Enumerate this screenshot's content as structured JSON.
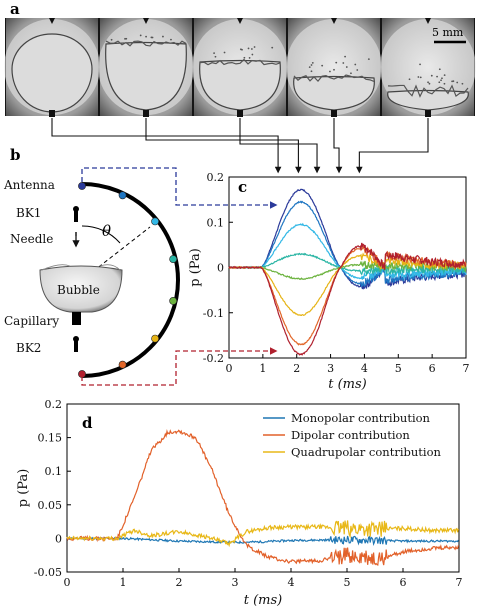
{
  "panel_labels": {
    "a": "a",
    "b": "b",
    "c": "c",
    "d": "d"
  },
  "scale_bar": "5 mm",
  "schematic": {
    "antenna": "Antenna",
    "bk1": "BK1",
    "needle": "Needle",
    "theta": "θ",
    "bubble": "Bubble",
    "capillary": "Capillary",
    "bk2": "BK2"
  },
  "colors": {
    "hydrophones": [
      "#2b3a9a",
      "#1f76c2",
      "#33b8e6",
      "#2ab5a4",
      "#6cb33f",
      "#e6b416",
      "#e2672a",
      "#b0202e"
    ],
    "monopolar": "#1f77b4",
    "dipolar": "#e2612a",
    "quadrupolar": "#e8b818",
    "antenna_link": "#2b3a9a",
    "bk2_link": "#b0202e"
  },
  "chart_data": [
    {
      "type": "line",
      "panel": "c",
      "xlabel": "t (ms)",
      "ylabel": "p (Pa)",
      "xlim": [
        0,
        7
      ],
      "ylim": [
        -0.2,
        0.2
      ],
      "xticks": [
        "0",
        "1",
        "2",
        "3",
        "4",
        "5",
        "6",
        "7"
      ],
      "yticks": [
        "0.2",
        "0.1",
        "0",
        "-0.1",
        "-0.2"
      ],
      "ytick_values": [
        0.2,
        0.1,
        0,
        -0.1,
        -0.2
      ],
      "grid": false,
      "peak_amplitudes": [
        0.172,
        0.145,
        0.095,
        0.03,
        -0.025,
        -0.105,
        -0.17,
        -0.192
      ],
      "peak_time": 2.0,
      "bubble_times_ms": [
        1.45,
        2.05,
        2.6,
        3.25,
        3.85
      ]
    },
    {
      "type": "line",
      "panel": "d",
      "xlabel": "t (ms)",
      "ylabel": "p (Pa)",
      "xlim": [
        0,
        7
      ],
      "ylim": [
        -0.05,
        0.2
      ],
      "xticks": [
        "0",
        "1",
        "2",
        "3",
        "4",
        "5",
        "6",
        "7"
      ],
      "yticks": [
        "0.2",
        "0.15",
        "0.1",
        "0.05",
        "0",
        "-0.05"
      ],
      "ytick_values": [
        0.2,
        0.15,
        0.1,
        0.05,
        0,
        -0.05
      ],
      "grid": false,
      "legend_position": "top-right",
      "series": [
        {
          "name": "Monopolar contribution",
          "x": [
            0,
            1,
            2,
            3,
            3.5,
            4,
            5,
            6,
            7
          ],
          "values": [
            0,
            0,
            -0.004,
            -0.006,
            -0.005,
            -0.003,
            -0.002,
            -0.004,
            -0.004
          ]
        },
        {
          "name": "Dipolar contribution",
          "x": [
            0,
            0.9,
            1.2,
            1.5,
            1.8,
            2.0,
            2.3,
            2.6,
            2.9,
            3.2,
            3.6,
            4.0,
            4.5,
            5.0,
            5.5,
            6.0,
            6.5,
            7.0
          ],
          "values": [
            0,
            0,
            0.06,
            0.13,
            0.158,
            0.16,
            0.15,
            0.1,
            0.035,
            -0.01,
            -0.028,
            -0.035,
            -0.033,
            -0.025,
            -0.032,
            -0.02,
            -0.015,
            -0.013
          ]
        },
        {
          "name": "Quadrupolar contribution",
          "x": [
            0,
            0.9,
            1.2,
            1.5,
            2.0,
            2.5,
            2.9,
            3.2,
            3.6,
            4.0,
            4.5,
            5.0,
            5.5,
            6.0,
            6.5,
            7.0
          ],
          "values": [
            0,
            0,
            0.012,
            0.004,
            0.01,
            0.002,
            -0.008,
            0.01,
            0.016,
            0.017,
            0.017,
            0.015,
            0.014,
            0.015,
            0.012,
            0.012
          ]
        }
      ]
    }
  ]
}
